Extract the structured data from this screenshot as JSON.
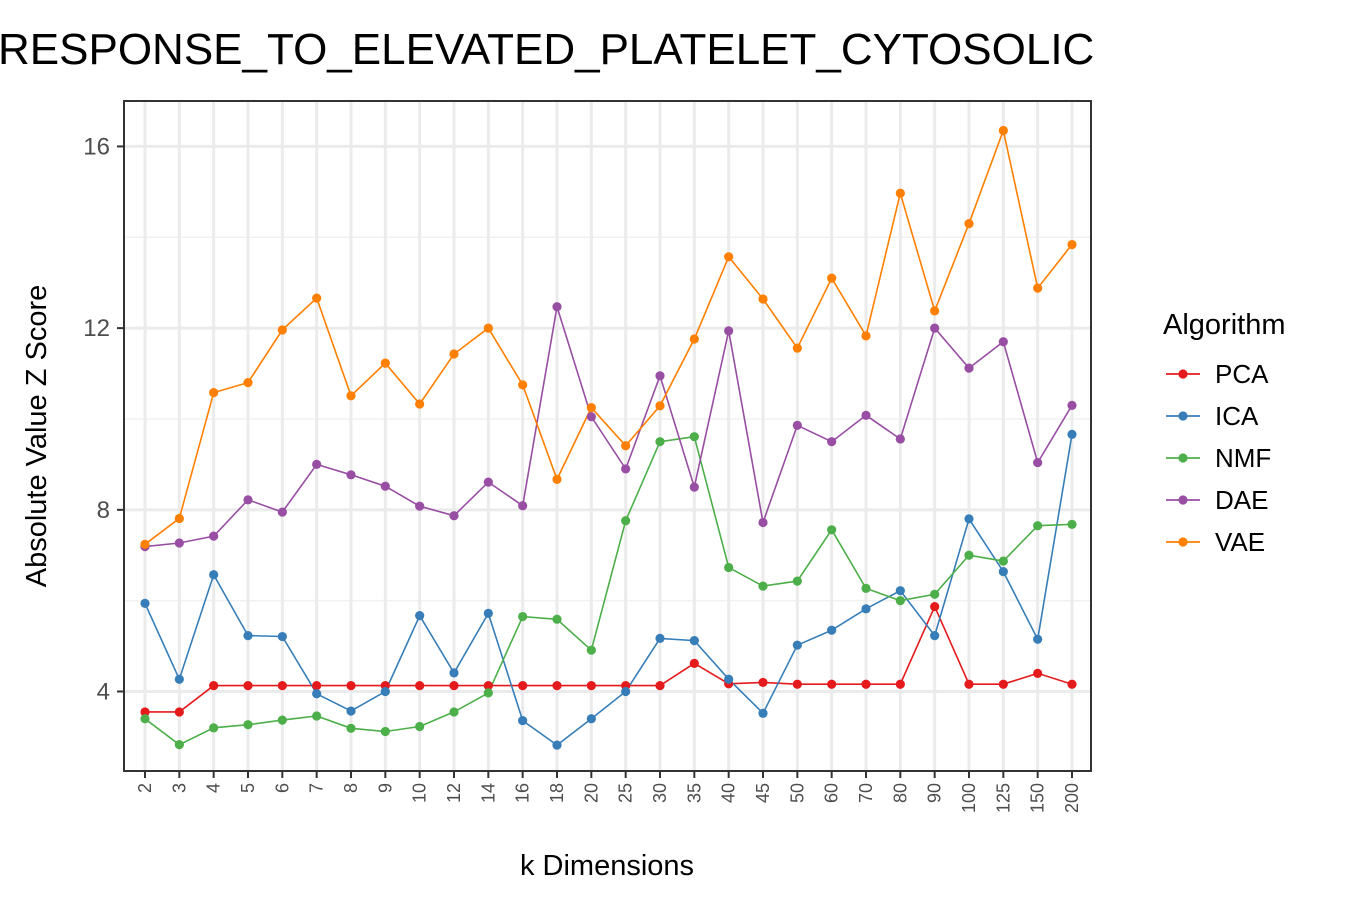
{
  "chart_data": {
    "type": "line",
    "title": "RESPONSE_TO_ELEVATED_PLATELET_CYTOSOLIC",
    "xlabel": "k Dimensions",
    "ylabel": "Absolute Value Z Score",
    "categories": [
      "2",
      "3",
      "4",
      "5",
      "6",
      "7",
      "8",
      "9",
      "10",
      "12",
      "14",
      "16",
      "18",
      "20",
      "25",
      "30",
      "35",
      "40",
      "45",
      "50",
      "60",
      "70",
      "80",
      "90",
      "100",
      "125",
      "150",
      "200"
    ],
    "yticks": [
      4,
      8,
      12,
      16
    ],
    "ylim": [
      2.25,
      17.0
    ],
    "grid": true,
    "legend": {
      "title": "Algorithm",
      "placement": "right"
    },
    "series": [
      {
        "name": "PCA",
        "color": "#e41a1c",
        "values": [
          3.55,
          3.55,
          4.13,
          4.13,
          4.13,
          4.13,
          4.13,
          4.13,
          4.13,
          4.13,
          4.13,
          4.13,
          4.13,
          4.13,
          4.13,
          4.13,
          4.62,
          4.17,
          4.2,
          4.16,
          4.16,
          4.16,
          4.16,
          5.87,
          4.16,
          4.16,
          4.4,
          4.16
        ]
      },
      {
        "name": "ICA",
        "color": "#377eb8",
        "values": [
          5.94,
          4.27,
          6.57,
          5.23,
          5.21,
          3.95,
          3.57,
          4.0,
          5.67,
          4.41,
          5.72,
          3.36,
          2.82,
          3.4,
          4.0,
          5.17,
          5.12,
          4.27,
          3.52,
          5.02,
          5.35,
          5.82,
          6.22,
          5.23,
          7.8,
          6.64,
          5.15,
          9.66
        ]
      },
      {
        "name": "NMF",
        "color": "#4daf4a",
        "values": [
          3.4,
          2.83,
          3.2,
          3.27,
          3.37,
          3.46,
          3.19,
          3.12,
          3.23,
          3.55,
          3.97,
          5.65,
          5.59,
          4.91,
          7.76,
          9.5,
          9.61,
          6.73,
          6.32,
          6.43,
          7.56,
          6.27,
          6.0,
          6.14,
          7.0,
          6.87,
          7.65,
          7.68
        ]
      },
      {
        "name": "DAE",
        "color": "#984ea3",
        "values": [
          7.19,
          7.27,
          7.42,
          8.22,
          7.95,
          9.0,
          8.77,
          8.52,
          8.08,
          7.87,
          8.61,
          8.09,
          12.47,
          10.05,
          8.9,
          10.95,
          8.5,
          11.94,
          7.72,
          9.86,
          9.5,
          10.08,
          9.56,
          12.0,
          11.12,
          11.7,
          9.04,
          10.3
        ]
      },
      {
        "name": "VAE",
        "color": "#ff7f00",
        "values": [
          7.24,
          7.81,
          10.58,
          10.8,
          11.96,
          12.66,
          10.51,
          11.23,
          10.33,
          11.43,
          12.0,
          10.75,
          8.67,
          10.25,
          9.41,
          10.29,
          11.76,
          13.57,
          12.64,
          11.56,
          13.1,
          11.83,
          14.97,
          12.38,
          14.3,
          16.35,
          12.88,
          13.84
        ]
      }
    ]
  }
}
